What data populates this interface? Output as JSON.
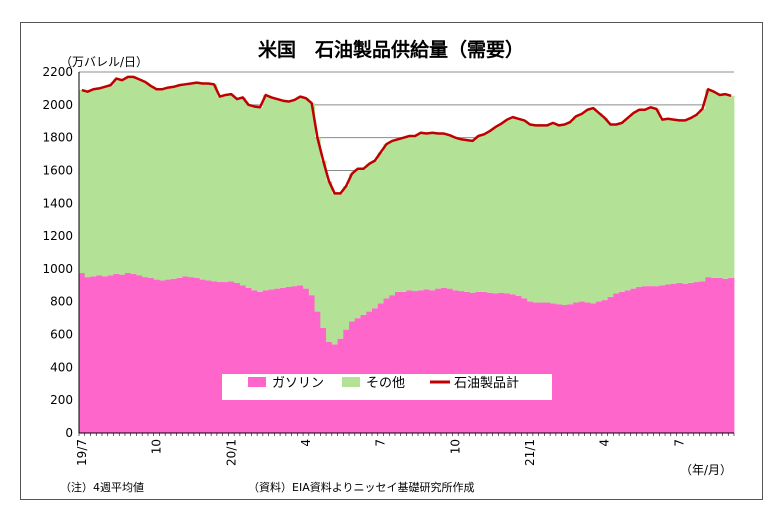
{
  "chart_data": {
    "type": "area",
    "title": "米国　石油製品供給量（需要）",
    "ylabel": "（万バレル/日）",
    "xlabel": "（年/月）",
    "ylim": [
      0,
      2200
    ],
    "yticks": [
      0,
      200,
      400,
      600,
      800,
      1000,
      1200,
      1400,
      1600,
      1800,
      2000,
      2200
    ],
    "x_tick_labels": [
      {
        "index": 0,
        "label": "19/7",
        "rotated": true
      },
      {
        "index": 13,
        "label": "10",
        "rotated": true
      },
      {
        "index": 26,
        "label": "20/1",
        "rotated": true
      },
      {
        "index": 39,
        "label": "4",
        "rotated": true
      },
      {
        "index": 52,
        "label": "7",
        "rotated": true
      },
      {
        "index": 65,
        "label": "10",
        "rotated": true
      },
      {
        "index": 78,
        "label": "21/1",
        "rotated": true
      },
      {
        "index": 91,
        "label": "4",
        "rotated": true
      },
      {
        "index": 104,
        "label": "7",
        "rotated": true
      }
    ],
    "grid": "horizontal",
    "legend_position": "bottom-center",
    "series": [
      {
        "name": "ガソリン",
        "color": "#ff66cc",
        "values": [
          975,
          950,
          955,
          960,
          955,
          960,
          970,
          965,
          975,
          970,
          960,
          950,
          945,
          935,
          930,
          935,
          940,
          945,
          955,
          950,
          945,
          935,
          930,
          925,
          920,
          920,
          925,
          915,
          900,
          885,
          870,
          860,
          870,
          875,
          880,
          885,
          890,
          895,
          900,
          880,
          840,
          740,
          640,
          555,
          540,
          575,
          630,
          680,
          700,
          720,
          740,
          760,
          790,
          820,
          840,
          860,
          860,
          870,
          865,
          870,
          875,
          870,
          880,
          885,
          880,
          870,
          865,
          860,
          855,
          860,
          860,
          855,
          850,
          855,
          850,
          845,
          835,
          820,
          800,
          795,
          795,
          795,
          790,
          785,
          780,
          785,
          795,
          800,
          795,
          790,
          800,
          810,
          830,
          850,
          860,
          870,
          880,
          890,
          895,
          895,
          895,
          900,
          905,
          910,
          915,
          910,
          915,
          920,
          925,
          950,
          945,
          945,
          940,
          945
        ]
      },
      {
        "name": "その他",
        "color": "#b3e296",
        "values": [
          1115,
          1130,
          1140,
          1140,
          1155,
          1160,
          1190,
          1185,
          1195,
          1200,
          1195,
          1190,
          1170,
          1160,
          1165,
          1170,
          1170,
          1175,
          1170,
          1180,
          1190,
          1195,
          1200,
          1200,
          1130,
          1140,
          1140,
          1120,
          1145,
          1115,
          1120,
          1125,
          1190,
          1170,
          1155,
          1140,
          1130,
          1135,
          1150,
          1160,
          1170,
          1060,
          1020,
          980,
          920,
          885,
          875,
          900,
          910,
          890,
          900,
          900,
          920,
          940,
          940,
          930,
          940,
          940,
          945,
          960,
          950,
          960,
          945,
          940,
          935,
          930,
          925,
          925,
          925,
          950,
          960,
          985,
          1015,
          1030,
          1060,
          1080,
          1080,
          1085,
          1080,
          1080,
          1080,
          1080,
          1100,
          1090,
          1100,
          1110,
          1135,
          1145,
          1175,
          1190,
          1150,
          1110,
          1050,
          1030,
          1030,
          1050,
          1070,
          1080,
          1075,
          1090,
          1080,
          1010,
          1010,
          1000,
          990,
          995,
          1005,
          1020,
          1050,
          1145,
          1135,
          1115,
          1125,
          1110
        ]
      },
      {
        "name": "石油製品計",
        "color": "#c00000",
        "values": [
          2090,
          2080,
          2095,
          2100,
          2110,
          2120,
          2160,
          2150,
          2170,
          2170,
          2155,
          2140,
          2115,
          2095,
          2095,
          2105,
          2110,
          2120,
          2125,
          2130,
          2135,
          2130,
          2130,
          2125,
          2050,
          2060,
          2065,
          2035,
          2045,
          2000,
          1990,
          1985,
          2060,
          2045,
          2035,
          2025,
          2020,
          2030,
          2050,
          2040,
          2010,
          1800,
          1660,
          1535,
          1460,
          1460,
          1505,
          1580,
          1610,
          1610,
          1640,
          1660,
          1710,
          1760,
          1780,
          1790,
          1800,
          1810,
          1810,
          1830,
          1825,
          1830,
          1825,
          1825,
          1815,
          1800,
          1790,
          1785,
          1780,
          1810,
          1820,
          1840,
          1865,
          1885,
          1910,
          1925,
          1915,
          1905,
          1880,
          1875,
          1875,
          1875,
          1890,
          1875,
          1880,
          1895,
          1930,
          1945,
          1970,
          1980,
          1950,
          1920,
          1880,
          1880,
          1890,
          1920,
          1950,
          1970,
          1970,
          1985,
          1975,
          1910,
          1915,
          1910,
          1905,
          1905,
          1920,
          1940,
          1975,
          2095,
          2080,
          2060,
          2065,
          2055
        ]
      }
    ]
  },
  "notes": {
    "left": "（注）4週平均値",
    "source": "（資料）EIA資料よりニッセイ基礎研究所作成"
  }
}
